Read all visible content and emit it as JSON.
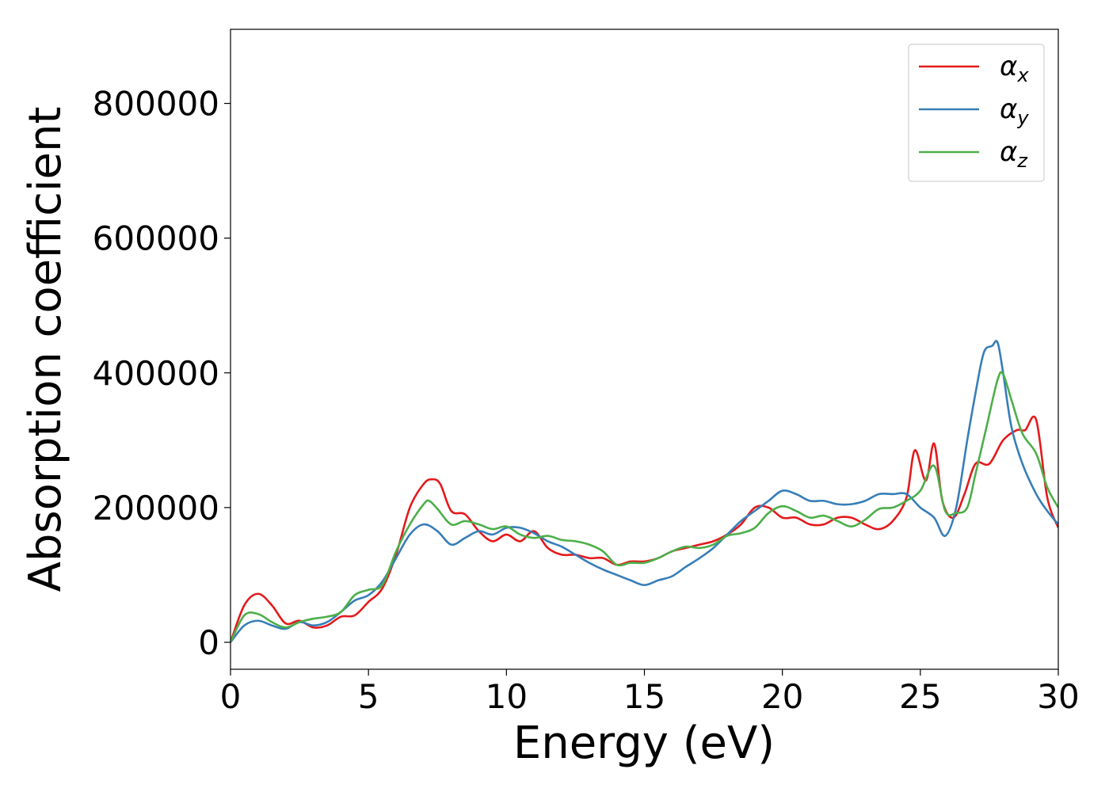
{
  "chart_data": {
    "type": "line",
    "xlabel": "Energy (eV)",
    "ylabel": "Absorption coefficient",
    "xlim": [
      0,
      30
    ],
    "ylim": [
      -40000,
      910000
    ],
    "xticks": [
      0,
      5,
      10,
      15,
      20,
      25,
      30
    ],
    "xtick_labels": [
      "0",
      "5",
      "10",
      "15",
      "20",
      "25",
      "30"
    ],
    "yticks": [
      0,
      200000,
      400000,
      600000,
      800000
    ],
    "ytick_labels": [
      "0",
      "200000",
      "400000",
      "600000",
      "800000"
    ],
    "grid": false,
    "legend_position": "top-right",
    "series": [
      {
        "name": "α",
        "subscript": "x",
        "color": "#e41a1c",
        "x": [
          0,
          0.5,
          1.0,
          1.5,
          2.0,
          2.5,
          3.0,
          3.5,
          4.0,
          4.5,
          5.0,
          5.5,
          6.0,
          6.5,
          7.0,
          7.3,
          7.6,
          8.0,
          8.5,
          9.0,
          9.5,
          10.0,
          10.5,
          11.0,
          11.5,
          12.0,
          12.5,
          13.0,
          13.5,
          14.0,
          14.5,
          15.0,
          15.5,
          16.0,
          16.5,
          17.0,
          17.5,
          18.0,
          18.5,
          19.0,
          19.5,
          20.0,
          20.5,
          21.0,
          21.5,
          22.0,
          22.5,
          23.0,
          23.5,
          24.0,
          24.5,
          24.8,
          25.2,
          25.5,
          25.8,
          26.2,
          26.6,
          27.0,
          27.5,
          28.0,
          28.5,
          28.8,
          29.2,
          29.6,
          30.0
        ],
        "y": [
          0,
          55000,
          72000,
          55000,
          28000,
          32000,
          22000,
          25000,
          38000,
          40000,
          60000,
          80000,
          130000,
          200000,
          235000,
          242000,
          235000,
          195000,
          190000,
          165000,
          150000,
          160000,
          150000,
          165000,
          140000,
          130000,
          130000,
          125000,
          125000,
          115000,
          120000,
          120000,
          125000,
          135000,
          140000,
          145000,
          150000,
          160000,
          175000,
          200000,
          200000,
          185000,
          185000,
          175000,
          175000,
          185000,
          185000,
          175000,
          168000,
          180000,
          215000,
          285000,
          240000,
          295000,
          210000,
          185000,
          220000,
          265000,
          265000,
          300000,
          315000,
          315000,
          330000,
          215000,
          170000
        ]
      },
      {
        "name": "α",
        "subscript": "y",
        "color": "#377eb8",
        "x": [
          0,
          0.5,
          1.0,
          1.5,
          2.0,
          2.5,
          3.0,
          3.5,
          4.0,
          4.5,
          5.0,
          5.5,
          6.0,
          6.5,
          7.0,
          7.5,
          8.0,
          8.5,
          9.0,
          9.5,
          10.0,
          10.5,
          11.0,
          11.5,
          12.0,
          12.5,
          13.0,
          13.5,
          14.0,
          14.5,
          15.0,
          15.5,
          16.0,
          16.5,
          17.0,
          17.5,
          18.0,
          18.5,
          19.0,
          19.5,
          20.0,
          20.5,
          21.0,
          21.5,
          22.0,
          22.5,
          23.0,
          23.5,
          24.0,
          24.5,
          25.0,
          25.5,
          25.9,
          26.3,
          26.7,
          27.0,
          27.3,
          27.6,
          27.8,
          28.0,
          28.3,
          28.7,
          29.2,
          29.6,
          30.0
        ],
        "y": [
          0,
          25000,
          32000,
          25000,
          20000,
          30000,
          25000,
          30000,
          45000,
          62000,
          70000,
          90000,
          125000,
          160000,
          175000,
          165000,
          145000,
          155000,
          165000,
          160000,
          170000,
          170000,
          162000,
          150000,
          142000,
          130000,
          118000,
          108000,
          100000,
          92000,
          85000,
          92000,
          98000,
          112000,
          125000,
          140000,
          160000,
          180000,
          195000,
          210000,
          225000,
          220000,
          210000,
          210000,
          205000,
          205000,
          210000,
          220000,
          220000,
          220000,
          200000,
          185000,
          158000,
          200000,
          300000,
          370000,
          430000,
          440000,
          445000,
          400000,
          320000,
          265000,
          220000,
          195000,
          175000
        ]
      },
      {
        "name": "α",
        "subscript": "z",
        "color": "#4daf4a",
        "x": [
          0,
          0.5,
          1.0,
          1.5,
          2.0,
          2.5,
          3.0,
          3.5,
          4.0,
          4.5,
          5.0,
          5.5,
          6.0,
          6.5,
          7.0,
          7.2,
          7.5,
          8.0,
          8.5,
          9.0,
          9.5,
          10.0,
          10.5,
          11.0,
          11.5,
          12.0,
          12.5,
          13.0,
          13.5,
          14.0,
          14.5,
          15.0,
          15.5,
          16.0,
          16.5,
          17.0,
          17.5,
          18.0,
          18.5,
          19.0,
          19.5,
          20.0,
          20.5,
          21.0,
          21.5,
          22.0,
          22.5,
          23.0,
          23.5,
          24.0,
          24.5,
          25.0,
          25.5,
          25.9,
          26.3,
          26.7,
          27.0,
          27.4,
          27.8,
          28.0,
          28.3,
          28.7,
          29.2,
          29.6,
          30.0
        ],
        "y": [
          0,
          40000,
          42000,
          30000,
          22000,
          30000,
          35000,
          38000,
          45000,
          70000,
          78000,
          85000,
          135000,
          175000,
          205000,
          210000,
          198000,
          175000,
          180000,
          175000,
          168000,
          172000,
          160000,
          155000,
          158000,
          152000,
          150000,
          145000,
          135000,
          115000,
          118000,
          118000,
          125000,
          135000,
          142000,
          140000,
          145000,
          158000,
          162000,
          170000,
          192000,
          202000,
          195000,
          185000,
          188000,
          180000,
          172000,
          182000,
          198000,
          200000,
          210000,
          225000,
          262000,
          195000,
          192000,
          200000,
          250000,
          320000,
          390000,
          398000,
          360000,
          310000,
          280000,
          230000,
          200000
        ]
      }
    ]
  }
}
